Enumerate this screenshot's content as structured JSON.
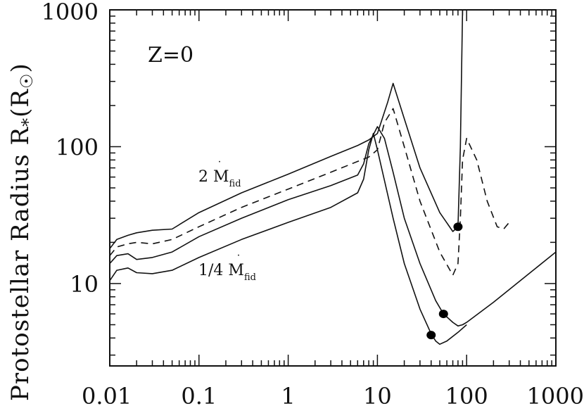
{
  "chart_data": {
    "type": "line",
    "xscale": "log",
    "yscale": "log",
    "xlim": [
      0.01,
      1000
    ],
    "ylim": [
      2.5,
      1000
    ],
    "xticks": [
      "0.01",
      "0.1",
      "1",
      "10",
      "100",
      "1000"
    ],
    "yticks": [
      "10",
      "100",
      "1000"
    ],
    "ylabel": "Protostellar Radius R",
    "ylabel_sub": "*",
    "ylabel_unit": "(R",
    "ylabel_unit_close": ")",
    "annotations": {
      "panel": "Z=0",
      "upper_prefix": "2 ",
      "lower_prefix": "1/4 ",
      "mdot_symbol": "M",
      "mdot_sub": "fid"
    },
    "series": [
      {
        "style": "solid",
        "x": [
          0.01,
          0.012,
          0.016,
          0.02,
          0.03,
          0.05,
          0.1,
          0.3,
          1,
          3,
          6,
          8,
          10,
          13,
          15,
          20,
          30,
          50,
          70,
          80,
          85,
          90
        ],
        "y": [
          18,
          21,
          22.5,
          23.5,
          24.5,
          25,
          33,
          46,
          63,
          85,
          102,
          112,
          125,
          210,
          290,
          160,
          70,
          33,
          24,
          26,
          100,
          1000
        ]
      },
      {
        "style": "dashed",
        "x": [
          0.01,
          0.012,
          0.016,
          0.02,
          0.03,
          0.05,
          0.1,
          0.3,
          1,
          3,
          6,
          8,
          10,
          12,
          15,
          20,
          30,
          50,
          70,
          80,
          85,
          90,
          100,
          130,
          170,
          220,
          260,
          300
        ],
        "y": [
          16,
          18.5,
          19.5,
          20,
          19.5,
          21,
          26,
          36,
          49,
          65,
          78,
          84,
          95,
          150,
          190,
          100,
          40,
          17,
          11.5,
          14,
          30,
          80,
          115,
          80,
          40,
          26,
          25,
          28
        ]
      },
      {
        "style": "solid",
        "x": [
          0.01,
          0.012,
          0.016,
          0.02,
          0.03,
          0.05,
          0.1,
          0.3,
          1,
          3,
          6,
          7,
          8,
          10,
          12,
          15,
          20,
          30,
          45,
          55,
          70,
          80,
          90,
          100,
          200,
          500,
          1000
        ],
        "y": [
          14,
          16,
          16.5,
          15,
          15.5,
          17,
          22,
          30,
          41,
          52,
          62,
          75,
          105,
          140,
          115,
          65,
          30,
          14,
          7.5,
          6,
          5.2,
          4.9,
          5,
          5.2,
          7.3,
          11.8,
          17
        ]
      },
      {
        "style": "solid",
        "x": [
          0.01,
          0.012,
          0.016,
          0.02,
          0.03,
          0.05,
          0.1,
          0.3,
          1,
          3,
          6,
          7,
          8,
          9,
          10,
          15,
          20,
          30,
          40,
          45,
          50,
          60,
          80,
          100
        ],
        "y": [
          10.5,
          12.5,
          13,
          12,
          11.8,
          12.5,
          15.5,
          21,
          28,
          36,
          46,
          58,
          95,
          125,
          95,
          30,
          14,
          6.5,
          4.3,
          3.8,
          3.6,
          3.8,
          4.4,
          5
        ]
      }
    ],
    "markers": [
      {
        "x": 80,
        "y": 26
      },
      {
        "x": 55,
        "y": 6
      },
      {
        "x": 40,
        "y": 4.2
      }
    ]
  }
}
